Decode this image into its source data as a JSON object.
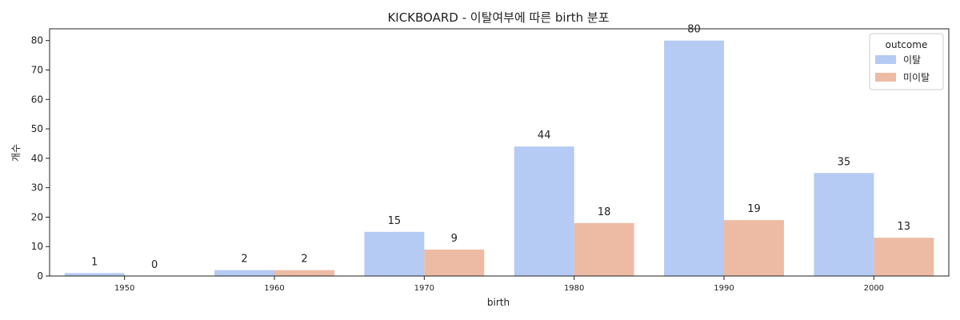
{
  "chart_data": {
    "type": "bar",
    "title": "KICKBOARD - 이탈여부에 따른 birth 분포",
    "xlabel": "birth",
    "ylabel": "개수",
    "categories": [
      "1950",
      "1960",
      "1970",
      "1980",
      "1990",
      "2000"
    ],
    "series": [
      {
        "name": "이탈",
        "values": [
          1,
          2,
          15,
          44,
          80,
          35
        ],
        "color": "#b5cbf4"
      },
      {
        "name": "미이탈",
        "values": [
          0,
          2,
          9,
          18,
          19,
          13
        ],
        "color": "#edbba4"
      }
    ],
    "ylim": [
      0,
      84
    ],
    "yticks": [
      0,
      10,
      20,
      30,
      40,
      50,
      60,
      70,
      80
    ],
    "grid": false,
    "legend": {
      "title": "outcome",
      "placement": "top-right"
    }
  }
}
